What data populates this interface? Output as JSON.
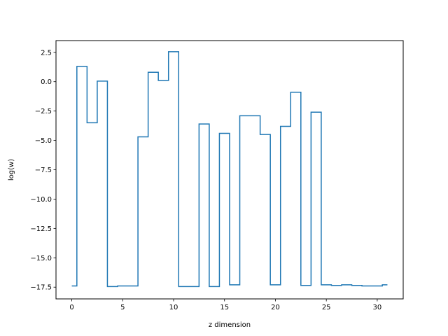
{
  "chart_data": {
    "type": "line",
    "step": "mid",
    "xlabel": "z dimension",
    "ylabel": "log(w)",
    "xlim": [
      -1.55,
      32.55
    ],
    "ylim": [
      -18.5,
      3.5
    ],
    "xticks": [
      0,
      5,
      10,
      15,
      20,
      25,
      30
    ],
    "xtick_labels": [
      "0",
      "5",
      "10",
      "15",
      "20",
      "25",
      "30"
    ],
    "yticks": [
      2.5,
      0.0,
      -2.5,
      -5.0,
      -7.5,
      -10.0,
      -12.5,
      -15.0,
      -17.5
    ],
    "ytick_labels": [
      "2.5",
      "0.0",
      "−2.5",
      "−5.0",
      "−7.5",
      "−10.0",
      "−12.5",
      "−15.0",
      "−17.5"
    ],
    "grid": false,
    "series_color": "#1f77b4",
    "x": [
      0,
      1,
      2,
      3,
      4,
      5,
      6,
      7,
      8,
      9,
      10,
      11,
      12,
      13,
      14,
      15,
      16,
      17,
      18,
      19,
      20,
      21,
      22,
      23,
      24,
      25,
      26,
      27,
      28,
      29,
      30,
      31
    ],
    "y": [
      -17.4,
      1.3,
      -3.5,
      0.05,
      -17.45,
      -17.4,
      -17.4,
      -4.7,
      0.8,
      0.1,
      2.55,
      -17.45,
      -17.45,
      -3.6,
      -17.45,
      -4.4,
      -17.3,
      -2.9,
      -2.9,
      -4.5,
      -17.3,
      -3.8,
      -0.9,
      -17.35,
      -2.6,
      -17.3,
      -17.35,
      -17.3,
      -17.35,
      -17.4,
      -17.4,
      -17.3
    ]
  }
}
